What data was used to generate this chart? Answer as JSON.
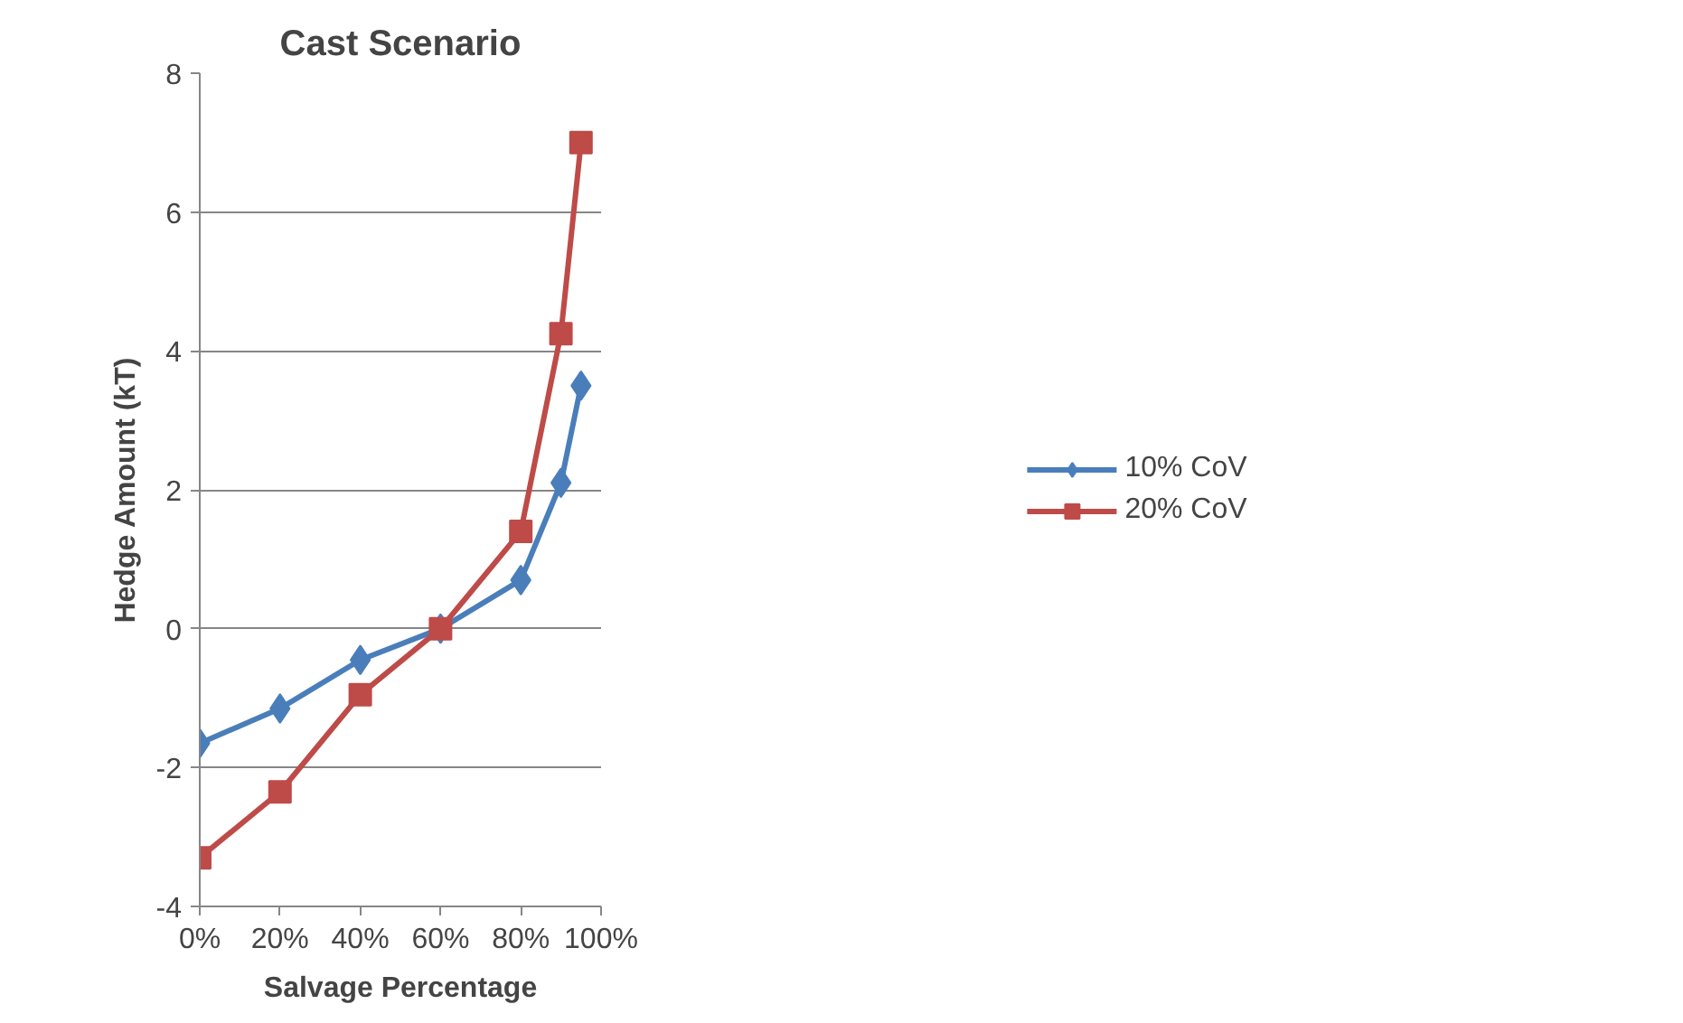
{
  "chart_data": {
    "type": "line",
    "title": "Cast Scenario",
    "xlabel": "Salvage Percentage",
    "ylabel": "Hedge Amount (kT)",
    "x": [
      0,
      20,
      40,
      60,
      80,
      90,
      95
    ],
    "series": [
      {
        "name": "10% CoV",
        "color": "#4a7ebb",
        "marker": "diamond",
        "values": [
          -1.65,
          -1.15,
          -0.45,
          0,
          0.7,
          2.1,
          3.5
        ]
      },
      {
        "name": "20% CoV",
        "color": "#be4b48",
        "marker": "square",
        "values": [
          -3.3,
          -2.35,
          -0.95,
          0,
          1.4,
          4.25,
          7
        ]
      }
    ],
    "xlim": [
      0,
      100
    ],
    "xticks": [
      {
        "value": 0,
        "label": "0%"
      },
      {
        "value": 20,
        "label": "20%"
      },
      {
        "value": 40,
        "label": "40%"
      },
      {
        "value": 60,
        "label": "60%"
      },
      {
        "value": 80,
        "label": "80%"
      },
      {
        "value": 100,
        "label": "100%"
      }
    ],
    "ylim": [
      -4,
      8
    ],
    "yticks": [
      -4,
      -2,
      0,
      2,
      4,
      6,
      8
    ],
    "grid": "y",
    "legend": "right",
    "line_style": "solid"
  }
}
